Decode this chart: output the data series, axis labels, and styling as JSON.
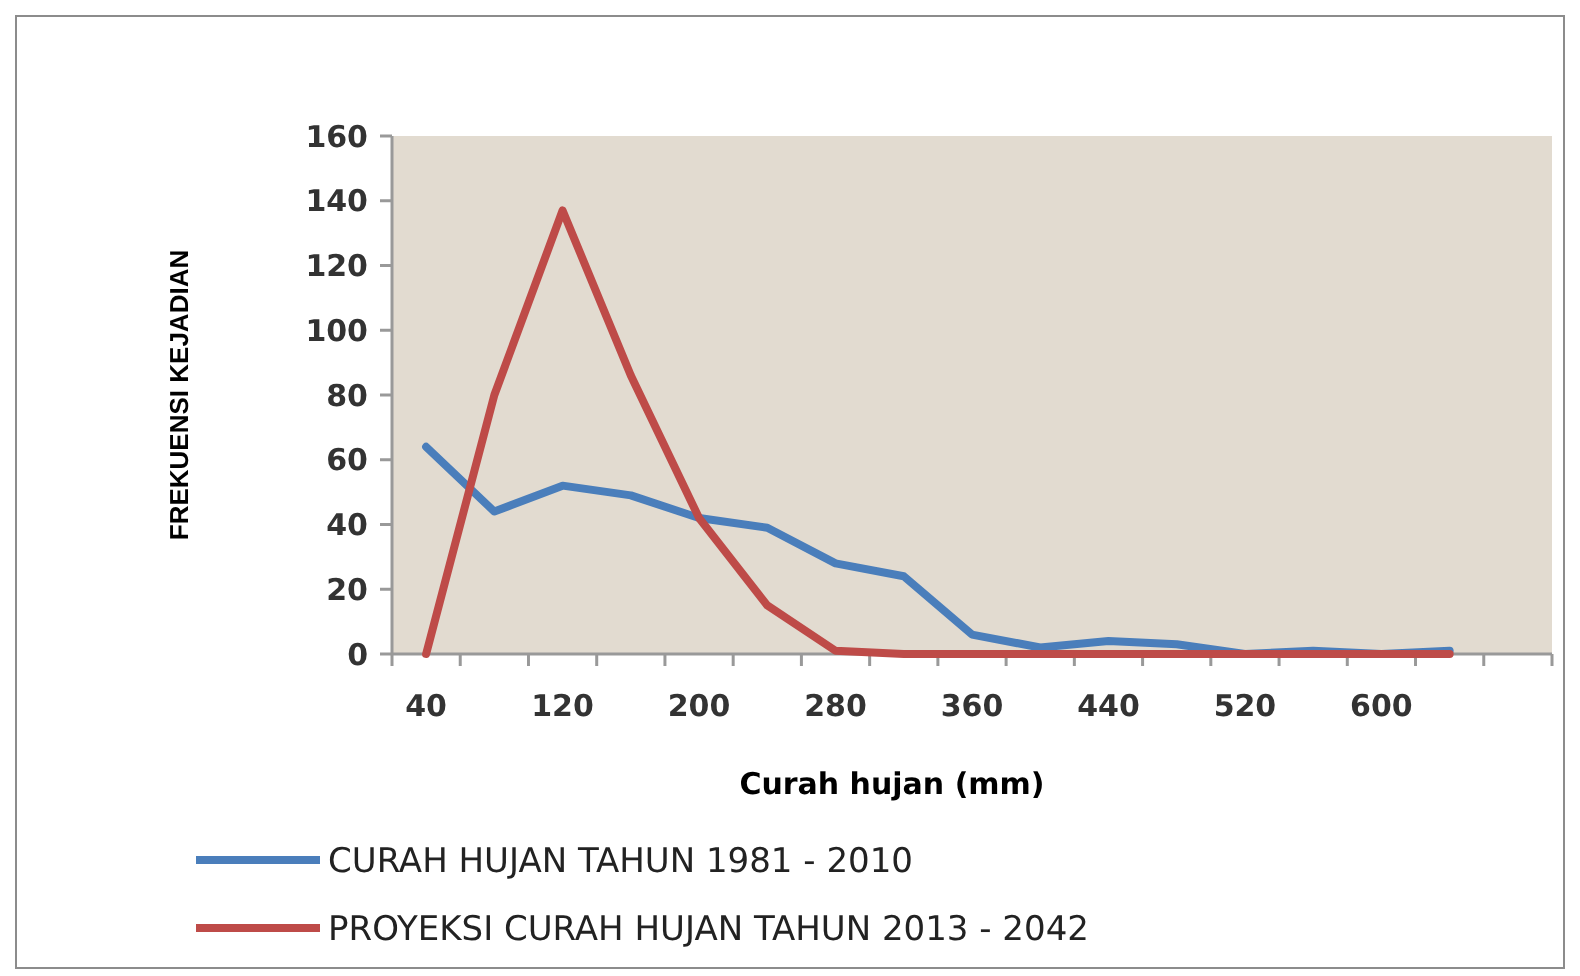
{
  "chart_data": {
    "type": "line",
    "xlabel": "Curah hujan (mm)",
    "ylabel": "FREKUENSI KEJADIAN",
    "categories": [
      "40",
      null,
      "120",
      null,
      "200",
      null,
      "280",
      null,
      "360",
      null,
      "440",
      null,
      "520",
      null,
      "600",
      null,
      null
    ],
    "series": [
      {
        "name": "CURAH HUJAN TAHUN 1981 - 2010",
        "color": "#4a7ebb",
        "values": [
          64,
          44,
          52,
          49,
          42,
          39,
          28,
          24,
          6,
          2,
          4,
          3,
          0,
          1,
          0,
          1,
          null
        ]
      },
      {
        "name": "PROYEKSI CURAH HUJAN TAHUN 2013 - 2042",
        "color": "#be4b48",
        "values": [
          0,
          80,
          137,
          86,
          42,
          15,
          1,
          0,
          0,
          0,
          0,
          0,
          0,
          0,
          0,
          0,
          null
        ]
      }
    ],
    "ylim": [
      0,
      160
    ],
    "yticks": [
      0,
      20,
      40,
      60,
      80,
      100,
      120,
      140,
      160
    ],
    "grid": false,
    "legend": "bottom",
    "marker": "none",
    "line_style": "solid"
  }
}
